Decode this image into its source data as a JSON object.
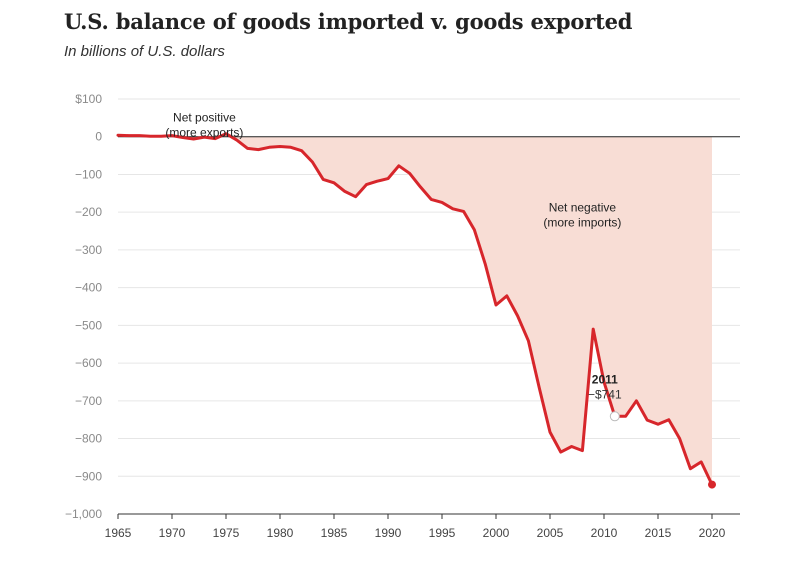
{
  "chart_data": {
    "type": "area",
    "title": "U.S. balance of goods imported v. goods exported",
    "subtitle": "In billions of U.S. dollars",
    "ylim": [
      -1000,
      100
    ],
    "yticks": [
      100,
      0,
      -100,
      -200,
      -300,
      -400,
      -500,
      -600,
      -700,
      -800,
      -900,
      -1000
    ],
    "ytick_labels": [
      "$100",
      "0",
      "−100",
      "−200",
      "−300",
      "−400",
      "−500",
      "−600",
      "−700",
      "−800",
      "−900",
      "−1,000"
    ],
    "xlim": [
      1965,
      2021
    ],
    "xticks": [
      1965,
      1970,
      1975,
      1980,
      1985,
      1990,
      1995,
      2000,
      2005,
      2010,
      2015,
      2020
    ],
    "grid": true,
    "colors": {
      "line": "#d7262b",
      "fill": "#f8ddd5",
      "grid": "#e6e6e6",
      "zero_line": "#222222"
    },
    "series": [
      {
        "x": [
          1965,
          1966,
          1967,
          1968,
          1969,
          1970,
          1971,
          1972,
          1973,
          1974,
          1975,
          1976,
          1977,
          1978,
          1979,
          1980,
          1981,
          1982,
          1983,
          1984,
          1985,
          1986,
          1987,
          1988,
          1989,
          1990,
          1991,
          1992,
          1993,
          1994,
          1995,
          1996,
          1997,
          1998,
          1999,
          2000,
          2001,
          2002,
          2003,
          2004,
          2005,
          2006,
          2007,
          2008,
          2009,
          2010,
          2011,
          2012,
          2013,
          2014,
          2015,
          2016,
          2017,
          2018,
          2019,
          2020
        ],
        "y": [
          4,
          3,
          3,
          1,
          1,
          3,
          -2,
          -6,
          -1,
          -5,
          8,
          -9,
          -31,
          -34,
          -28,
          -26,
          -28,
          -37,
          -67,
          -113,
          -122,
          -145,
          -159,
          -127,
          -118,
          -111,
          -77,
          -97,
          -133,
          -166,
          -174,
          -191,
          -198,
          -247,
          -337,
          -446,
          -422,
          -475,
          -541,
          -665,
          -783,
          -836,
          -821,
          -832,
          -510,
          -650,
          -741,
          -741,
          -700,
          -751,
          -762,
          -750,
          -800,
          -880,
          -862,
          -922
        ]
      }
    ],
    "annotations": [
      {
        "lines": [
          "Net positive",
          "(more exports)"
        ],
        "x": 1973,
        "y": 72
      },
      {
        "lines": [
          "Net negative",
          "(more imports)"
        ],
        "x": 2008,
        "y": -166
      }
    ],
    "callout": {
      "label": "2011",
      "value": "−$741",
      "x": 2011,
      "y": -741
    }
  }
}
